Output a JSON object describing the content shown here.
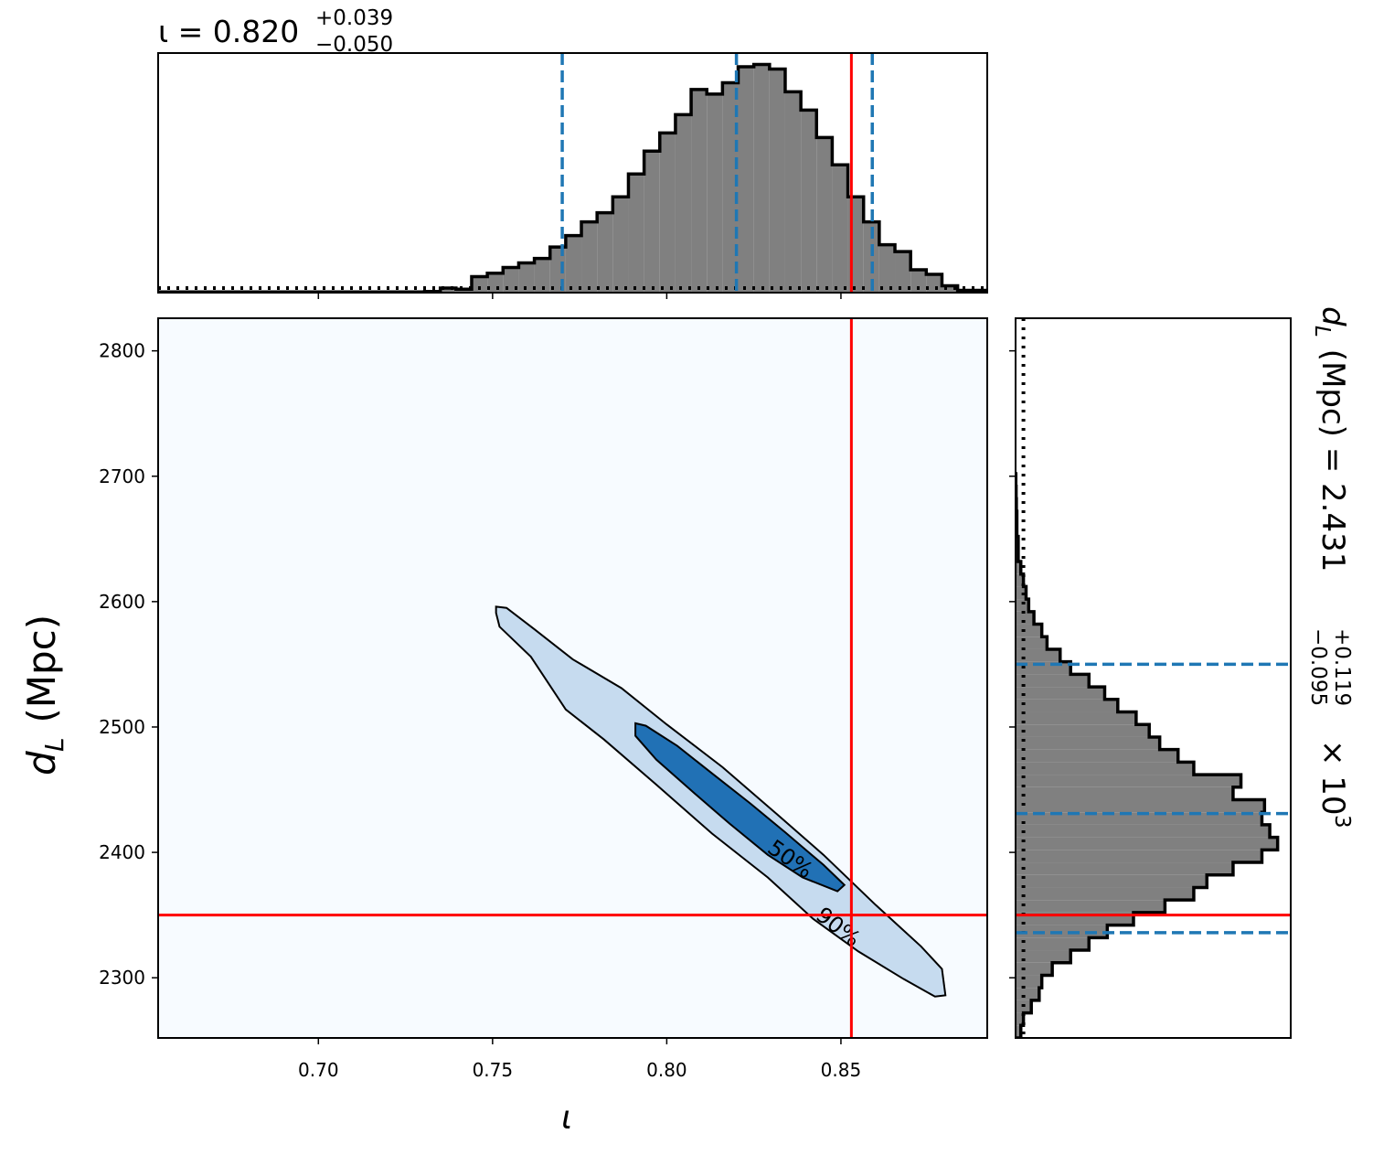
{
  "chart_data": [
    {
      "type": "histogram",
      "orientation": "vertical",
      "title": "ι = 0.820",
      "title_sup": "+0.039",
      "title_sub": "−0.050",
      "bins": [
        0.654,
        0.6585,
        0.663,
        0.6675,
        0.672,
        0.6765,
        0.681,
        0.6855,
        0.69,
        0.6945,
        0.699,
        0.7035,
        0.708,
        0.7125,
        0.717,
        0.7215,
        0.726,
        0.7305,
        0.735,
        0.7395,
        0.744,
        0.7485,
        0.753,
        0.7575,
        0.762,
        0.7665,
        0.771,
        0.7755,
        0.78,
        0.7845,
        0.789,
        0.7935,
        0.798,
        0.8025,
        0.807,
        0.8115,
        0.816,
        0.8205,
        0.825,
        0.8295,
        0.834,
        0.8385,
        0.843,
        0.8475,
        0.852,
        0.8565,
        0.861,
        0.8655,
        0.87,
        0.8745,
        0.879,
        0.8835,
        0.888,
        0.8925
      ],
      "values": [
        0.3,
        0.3,
        0.3,
        0.3,
        0.3,
        0.3,
        0.3,
        0.3,
        0.3,
        0.3,
        0.3,
        0.3,
        0.3,
        0.3,
        0.3,
        0.3,
        0.3,
        0.5,
        2,
        1.5,
        7,
        8.5,
        11,
        13,
        15,
        20,
        25,
        31,
        35,
        42,
        52,
        62,
        70,
        78,
        89,
        87,
        92,
        99,
        100,
        98,
        88,
        80,
        68,
        56,
        42,
        31,
        21,
        18,
        10,
        8,
        3,
        1,
        1
      ],
      "color": "#808080",
      "edge_color": "#000000",
      "xlim": [
        0.654,
        0.892
      ],
      "ylim": [
        0,
        105
      ],
      "xticks": [
        0.7,
        0.75,
        0.8,
        0.85
      ],
      "dotted_level": 2,
      "quantiles": [
        0.77,
        0.82,
        0.859
      ],
      "quantile_color": "#1f77b4",
      "truth": 0.853,
      "truth_color": "#ff0000"
    },
    {
      "type": "contour",
      "xlabel": "ι",
      "ylabel": "d",
      "ylabel_sub": "L",
      "ylabel_rest": " (Mpc)",
      "xlim": [
        0.654,
        0.892
      ],
      "ylim": [
        2252,
        2826
      ],
      "xticks": [
        {
          "value": 0.7,
          "label": "0.70"
        },
        0.75,
        {
          "value": 0.8,
          "label": "0.80"
        },
        0.85
      ],
      "yticks": [
        2300,
        2400,
        2500,
        2600,
        2700,
        2800
      ],
      "background": "#f7fbff",
      "contours": [
        {
          "label": "90%",
          "fill": "#c6dbef",
          "x": [
            0.751,
            0.754,
            0.762,
            0.773,
            0.787,
            0.8,
            0.816,
            0.831,
            0.845,
            0.86,
            0.873,
            0.879,
            0.88,
            0.877,
            0.868,
            0.855,
            0.842,
            0.829,
            0.813,
            0.797,
            0.782,
            0.771,
            0.761,
            0.752,
            0.751
          ],
          "y": [
            2596,
            2595,
            2578,
            2554,
            2531,
            2502,
            2468,
            2432,
            2398,
            2358,
            2325,
            2307,
            2286,
            2285,
            2299,
            2321,
            2347,
            2380,
            2415,
            2454,
            2490,
            2514,
            2556,
            2580,
            2591
          ]
        },
        {
          "label": "50%",
          "fill": "#2171b5",
          "x": [
            0.791,
            0.794,
            0.803,
            0.813,
            0.824,
            0.834,
            0.845,
            0.851,
            0.849,
            0.839,
            0.829,
            0.818,
            0.808,
            0.797,
            0.791
          ],
          "y": [
            2503,
            2501,
            2485,
            2463,
            2439,
            2416,
            2390,
            2374,
            2369,
            2380,
            2398,
            2423,
            2447,
            2474,
            2493
          ]
        }
      ],
      "truth_x": 0.853,
      "truth_y": 2350,
      "truth_color": "#ff0000"
    },
    {
      "type": "histogram",
      "orientation": "horizontal",
      "label": "d",
      "label_sub": "L",
      "label_rest": " (Mpc) = 2.431",
      "label_sup": "+0.119",
      "label_sub2": "−0.095",
      "label_times": "× 10",
      "label_exp": "3",
      "bins": [
        2252,
        2262,
        2272,
        2282,
        2292,
        2302,
        2312,
        2322,
        2332,
        2342,
        2352,
        2362,
        2372,
        2382,
        2392,
        2402,
        2412,
        2422,
        2432,
        2442,
        2452,
        2462,
        2472,
        2482,
        2492,
        2502,
        2512,
        2522,
        2532,
        2542,
        2552,
        2562,
        2572,
        2582,
        2592,
        2602,
        2612,
        2622,
        2632,
        2642,
        2652,
        2662,
        2672,
        2682,
        2692,
        2702
      ],
      "values": [
        2,
        3,
        6,
        9,
        10,
        14,
        21,
        28,
        35,
        45,
        57,
        68,
        73,
        83,
        94,
        100,
        97,
        94,
        95,
        83,
        86,
        68,
        62,
        55,
        51,
        46,
        39,
        34,
        28,
        21,
        17,
        12,
        10,
        7,
        5,
        4,
        3,
        2,
        1,
        1,
        0.5,
        0.5,
        0.3,
        0.2,
        0.1
      ],
      "color": "#808080",
      "edge_color": "#000000",
      "xlim": [
        0,
        105
      ],
      "ylim": [
        2252,
        2826
      ],
      "yticks": [
        2300,
        2400,
        2500,
        2600,
        2700,
        2800
      ],
      "dotted_level": 3,
      "quantiles": [
        2336,
        2431,
        2550
      ],
      "quantile_color": "#1f77b4",
      "truth": 2350,
      "truth_color": "#ff0000"
    }
  ]
}
